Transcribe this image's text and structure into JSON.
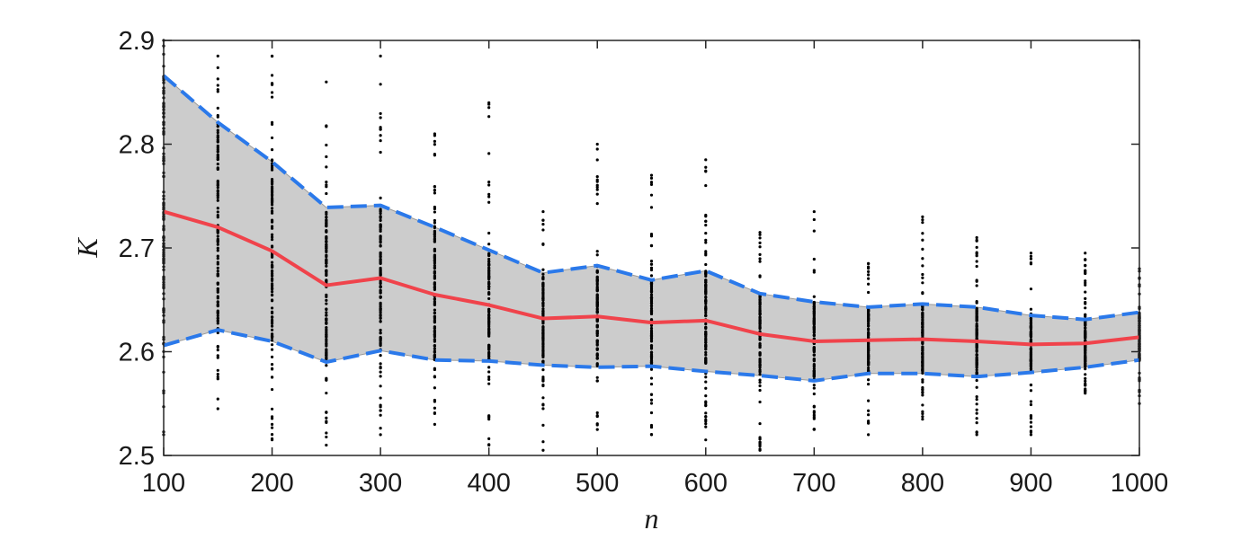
{
  "chart_data": {
    "type": "line",
    "title": "",
    "xlabel": "n",
    "ylabel": "K",
    "xlim": [
      100,
      1000
    ],
    "ylim": [
      2.5,
      2.9
    ],
    "x_ticks": [
      100,
      200,
      300,
      400,
      500,
      600,
      700,
      800,
      900,
      1000
    ],
    "y_ticks": [
      2.5,
      2.6,
      2.7,
      2.8,
      2.9
    ],
    "grid": false,
    "legend": "none",
    "x": [
      100,
      150,
      200,
      250,
      300,
      350,
      400,
      450,
      500,
      550,
      600,
      650,
      700,
      750,
      800,
      850,
      900,
      950,
      1000
    ],
    "series": [
      {
        "role": "mean",
        "color": "#f0434b",
        "style": "solid",
        "values": [
          2.735,
          2.72,
          2.697,
          2.664,
          2.671,
          2.655,
          2.645,
          2.632,
          2.634,
          2.628,
          2.63,
          2.617,
          2.61,
          2.611,
          2.612,
          2.61,
          2.607,
          2.608,
          2.614
        ]
      },
      {
        "role": "upper-bound",
        "color": "#2b79ea",
        "style": "dashed",
        "values": [
          2.866,
          2.821,
          2.783,
          2.739,
          2.741,
          2.72,
          2.698,
          2.676,
          2.683,
          2.669,
          2.678,
          2.656,
          2.648,
          2.643,
          2.646,
          2.643,
          2.635,
          2.631,
          2.638
        ]
      },
      {
        "role": "lower-bound",
        "color": "#2b79ea",
        "style": "dashed",
        "values": [
          2.606,
          2.621,
          2.61,
          2.59,
          2.601,
          2.592,
          2.591,
          2.587,
          2.585,
          2.586,
          2.581,
          2.577,
          2.572,
          2.579,
          2.579,
          2.576,
          2.58,
          2.585,
          2.592
        ]
      }
    ],
    "band": {
      "upper": "upper-bound",
      "lower": "lower-bound",
      "color": "#cccccc"
    },
    "scatter": {
      "color": "#000000",
      "points_per_x": 120,
      "y_min": [
        2.52,
        2.545,
        2.515,
        2.51,
        2.52,
        2.53,
        2.51,
        2.505,
        2.525,
        2.52,
        2.515,
        2.505,
        2.525,
        2.52,
        2.535,
        2.52,
        2.52,
        2.56,
        2.55
      ],
      "y_max": [
        2.9,
        2.885,
        2.885,
        2.86,
        2.885,
        2.81,
        2.84,
        2.735,
        2.8,
        2.77,
        2.785,
        2.715,
        2.735,
        2.685,
        2.73,
        2.71,
        2.695,
        2.695,
        2.68
      ]
    }
  }
}
